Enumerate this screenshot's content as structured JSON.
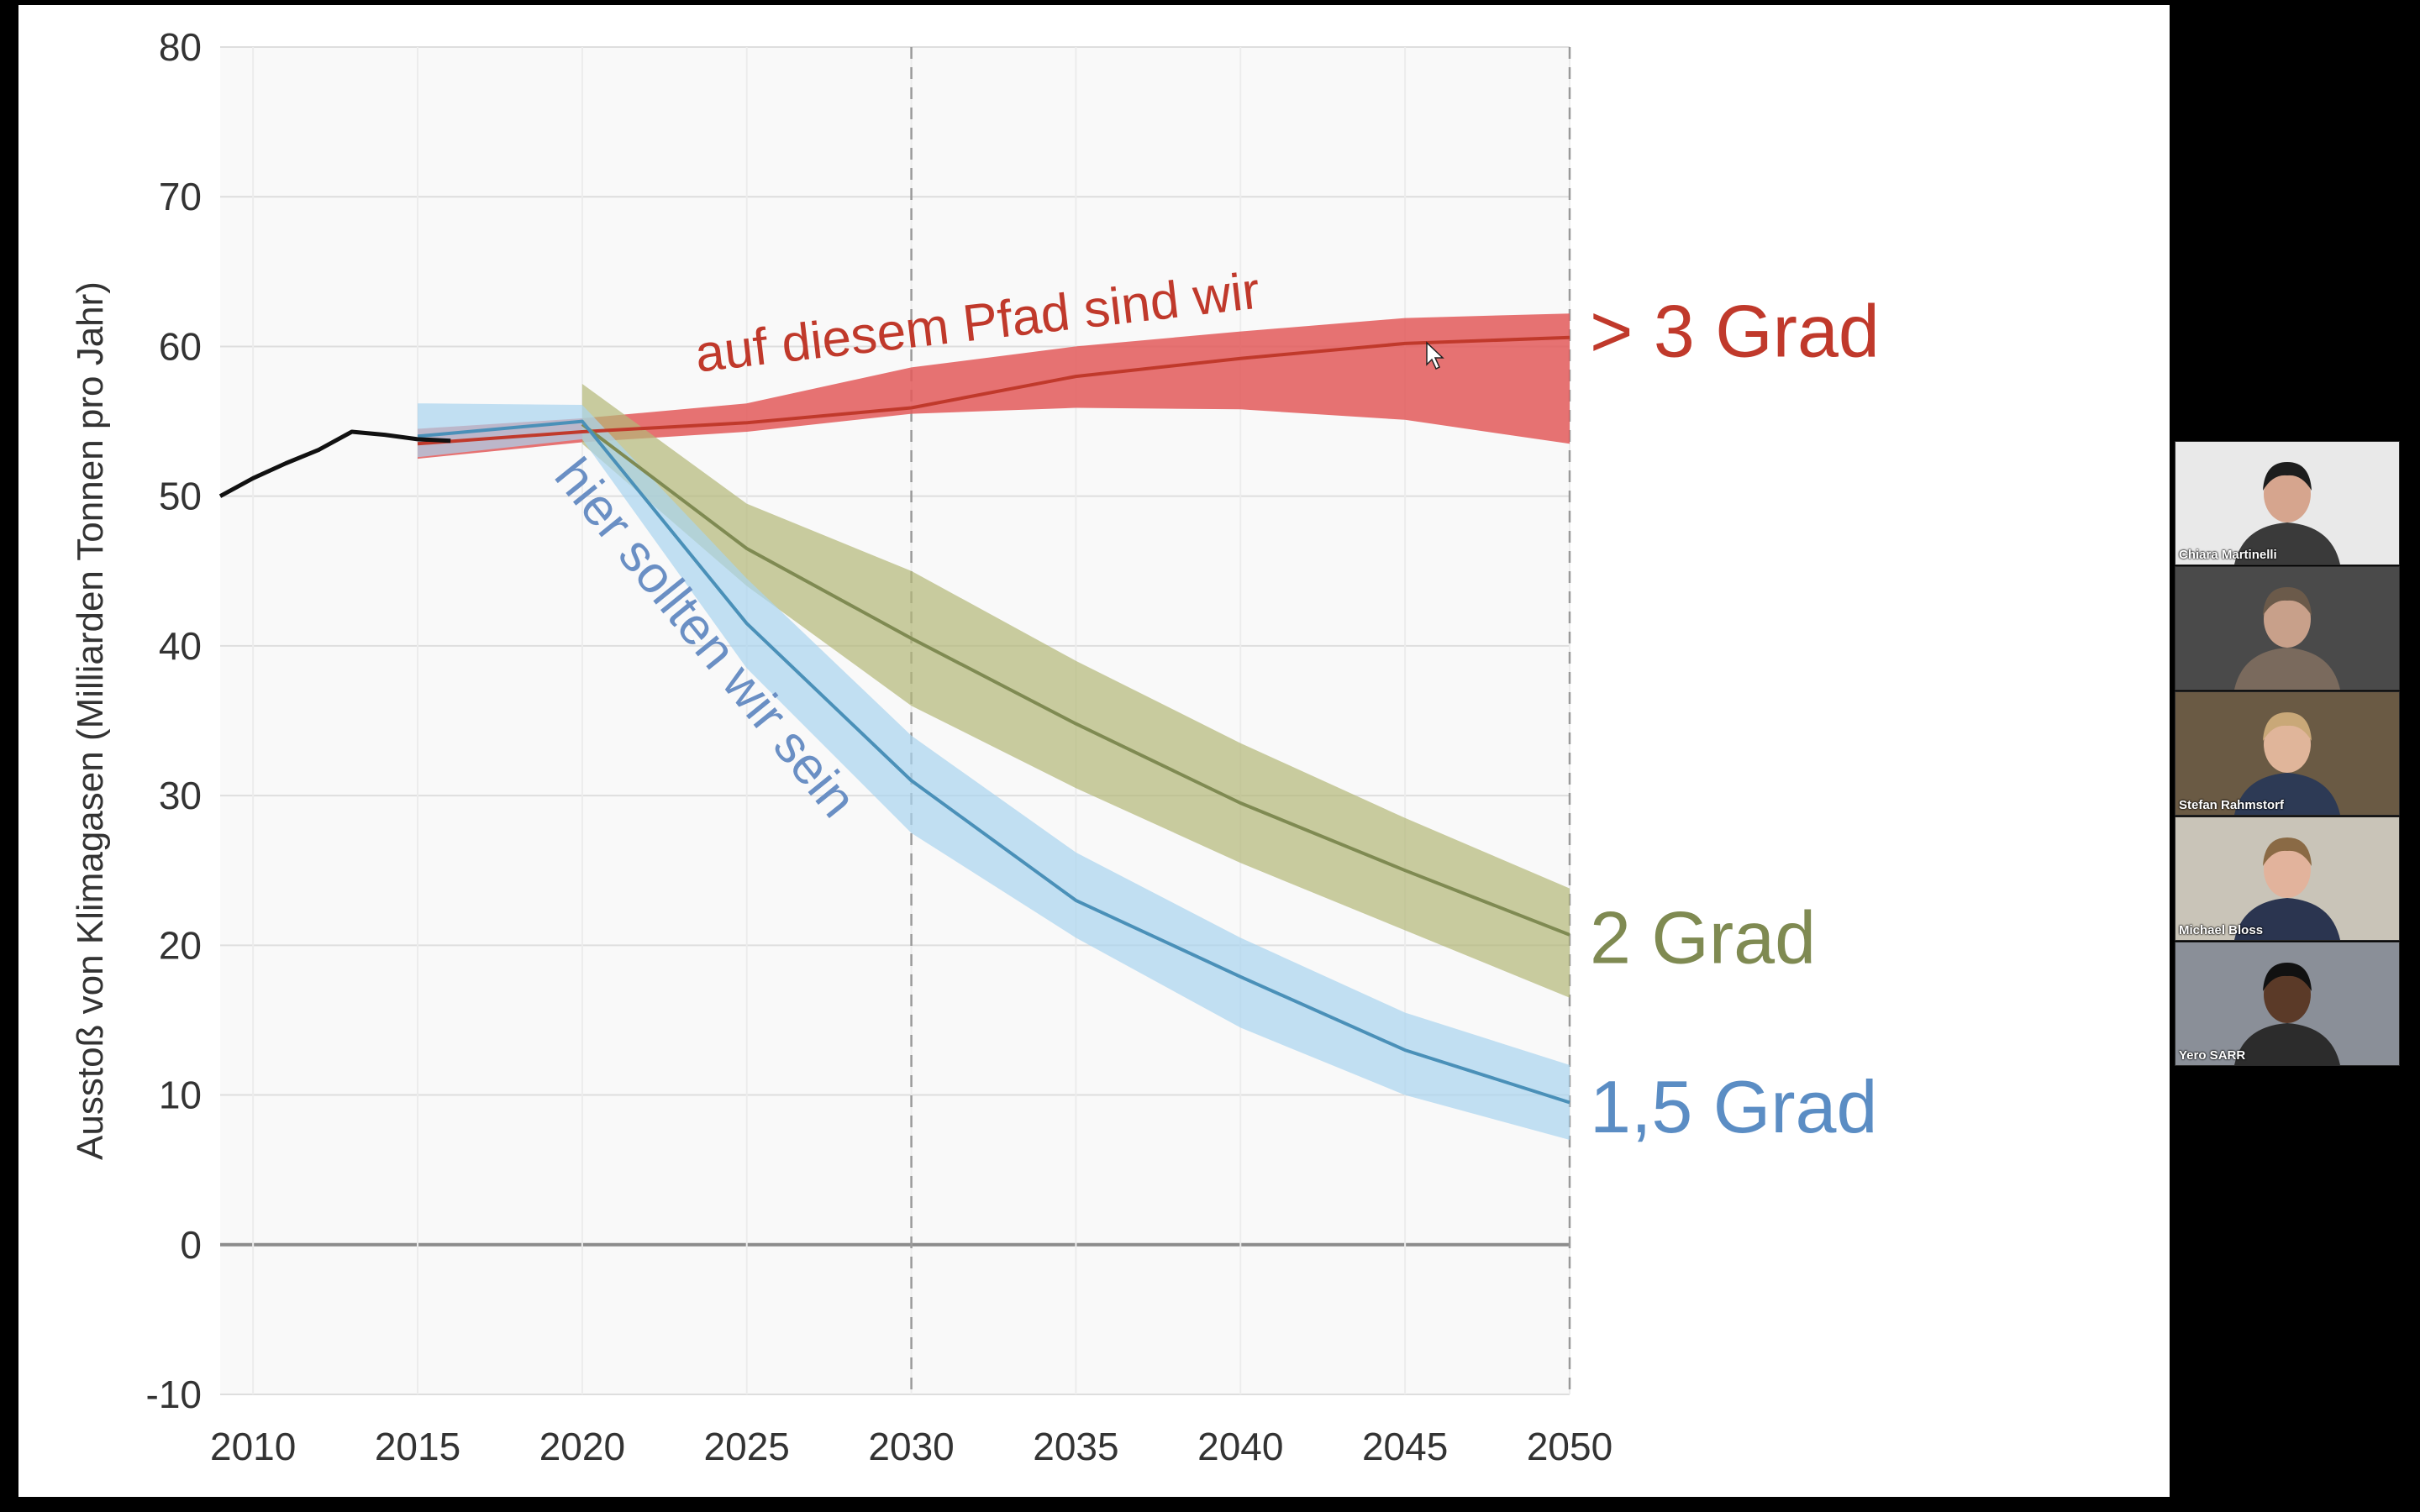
{
  "chart_data": {
    "type": "line",
    "title": "",
    "ylabel": "Ausstoß von Klimagasen (Milliarden Tonnen pro Jahr)",
    "xlabel": "",
    "ylim": [
      -10,
      80
    ],
    "xlim": [
      2009,
      2050
    ],
    "y_ticks": [
      "80",
      "70",
      "60",
      "50",
      "40",
      "30",
      "20",
      "10",
      "0",
      "-10"
    ],
    "y_tick_values": [
      80,
      70,
      60,
      50,
      40,
      30,
      20,
      10,
      0,
      -10
    ],
    "x_ticks": [
      "2010",
      "2015",
      "2020",
      "2025",
      "2030",
      "2035",
      "2040",
      "2045",
      "2050"
    ],
    "x_tick_values": [
      2010,
      2015,
      2020,
      2025,
      2030,
      2035,
      2040,
      2045,
      2050
    ],
    "grid": true,
    "vertical_dashed_lines": [
      2030,
      2050
    ],
    "historical": {
      "color": "#111111",
      "x": [
        2009,
        2010,
        2011,
        2012,
        2013,
        2014,
        2015,
        2016
      ],
      "y": [
        50.0,
        51.2,
        52.2,
        53.1,
        54.3,
        54.1,
        53.8,
        53.7
      ]
    },
    "series": [
      {
        "key": "red",
        "name": "> 3 Grad",
        "color": "#c0392b",
        "band_color": "#e35a5a",
        "x": [
          2015,
          2020,
          2025,
          2030,
          2035,
          2040,
          2045,
          2050
        ],
        "y": [
          53.5,
          54.3,
          54.9,
          55.9,
          58.0,
          59.2,
          60.2,
          60.6
        ],
        "lower": [
          52.5,
          53.6,
          54.3,
          55.5,
          55.9,
          55.8,
          55.1,
          53.5
        ],
        "upper": [
          54.5,
          55.2,
          56.2,
          58.6,
          60.0,
          61.0,
          61.9,
          62.2
        ]
      },
      {
        "key": "green",
        "name": "2 Grad",
        "color": "#7f8a52",
        "band_color": "#b4b878",
        "x": [
          2020,
          2025,
          2030,
          2035,
          2040,
          2045,
          2050
        ],
        "y": [
          54.8,
          46.5,
          40.5,
          34.8,
          29.5,
          25.0,
          20.7
        ],
        "lower": [
          53.5,
          44.0,
          36.0,
          30.5,
          25.5,
          21.0,
          16.5
        ],
        "upper": [
          57.5,
          49.5,
          45.0,
          39.0,
          33.5,
          28.5,
          23.8
        ]
      },
      {
        "key": "blue",
        "name": "1,5 Grad",
        "color": "#4a90b8",
        "band_color": "#a9d4ef",
        "x": [
          2015,
          2020,
          2025,
          2030,
          2035,
          2040,
          2045,
          2050
        ],
        "y": [
          54.0,
          55.0,
          41.5,
          31.0,
          23.0,
          17.9,
          13.0,
          9.5
        ],
        "lower": [
          52.6,
          53.8,
          38.5,
          27.5,
          20.5,
          14.5,
          10.0,
          7.0
        ],
        "upper": [
          56.2,
          56.1,
          44.5,
          34.0,
          26.2,
          20.5,
          15.5,
          12.0
        ]
      }
    ],
    "annotations": [
      {
        "key": "red",
        "text": "auf diesem Pfad sind wir",
        "color": "#c0392b"
      },
      {
        "key": "blue",
        "text": "hier sollten wir sein",
        "color": "#6a8fc4"
      }
    ]
  },
  "participants": [
    {
      "name": "Chiara Martinelli",
      "bg": "#e9e9e9",
      "shirt": "#3a3a3a",
      "skin": "#d6a58e",
      "hair": "#1d1d1d"
    },
    {
      "name": "",
      "bg": "#4a4a4a",
      "shirt": "#7a6a5d",
      "skin": "#c8a08a",
      "hair": "#6b5a4a"
    },
    {
      "name": "Stefan Rahmstorf",
      "bg": "#6a5a44",
      "shirt": "#2d3a55",
      "skin": "#e0b59a",
      "hair": "#c9a878"
    },
    {
      "name": "Michael Bloss",
      "bg": "#c9c4b8",
      "shirt": "#2b3550",
      "skin": "#e2b39c",
      "hair": "#8a6a45"
    },
    {
      "name": "Yero SARR",
      "bg": "#8a8f98",
      "shirt": "#2c2c2c",
      "skin": "#5b3a28",
      "hair": "#111111"
    }
  ]
}
